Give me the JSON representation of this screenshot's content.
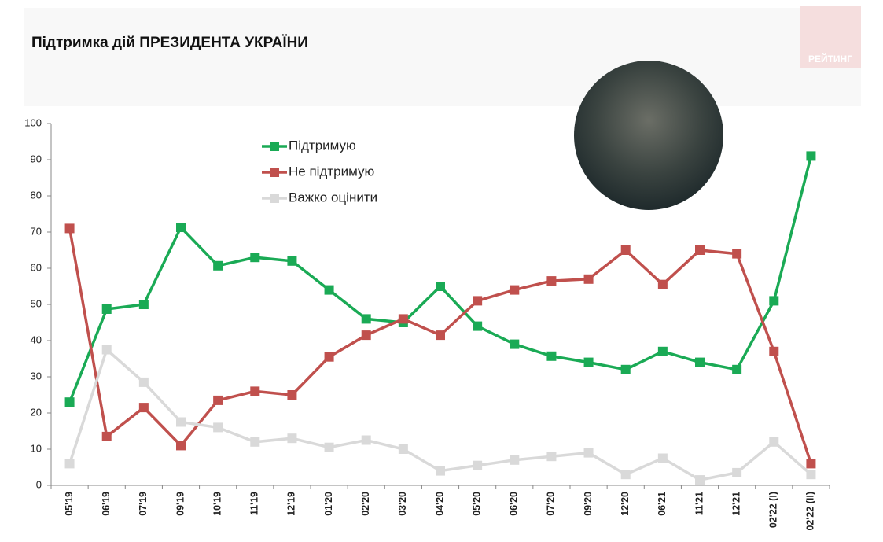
{
  "logo": "РЕЙТИНГ",
  "chart_data": {
    "type": "line",
    "title": "Підтримка дій ПРЕЗИДЕНТА УКРАЇНИ",
    "categories": [
      "05'19",
      "06'19",
      "07'19",
      "09'19",
      "10'19",
      "11'19",
      "12'19",
      "01'20",
      "02'20",
      "03'20",
      "04'20",
      "05'20",
      "06'20",
      "07'20",
      "09'20",
      "12'20",
      "06'21",
      "11'21",
      "12'21",
      "02'22 (I)",
      "02'22 (II)"
    ],
    "series": [
      {
        "name": "Підтримую",
        "color": "#1aaa55",
        "values": [
          23,
          48.7,
          50,
          71.3,
          60.7,
          63,
          62,
          54,
          46,
          45,
          55,
          44,
          39,
          35.7,
          34,
          32,
          37,
          34,
          32,
          51,
          91
        ]
      },
      {
        "name": "Не підтримую",
        "color": "#c0504d",
        "values": [
          71,
          13.5,
          21.5,
          11,
          23.5,
          26,
          25,
          35.5,
          41.5,
          46,
          41.5,
          51,
          54,
          56.5,
          57,
          65,
          55.5,
          65,
          64,
          37,
          6
        ]
      },
      {
        "name": "Важко оцінити",
        "color": "#d9d9d9",
        "values": [
          6,
          37.5,
          28.5,
          17.5,
          16,
          12,
          13,
          10.5,
          12.5,
          10,
          4,
          5.5,
          7,
          8,
          9,
          3,
          7.5,
          1.5,
          3.5,
          12,
          3
        ]
      }
    ],
    "ylim": [
      0,
      100
    ],
    "yticks": [
      0,
      10,
      20,
      30,
      40,
      50,
      60,
      70,
      80,
      90,
      100
    ],
    "legend": "top-left"
  }
}
